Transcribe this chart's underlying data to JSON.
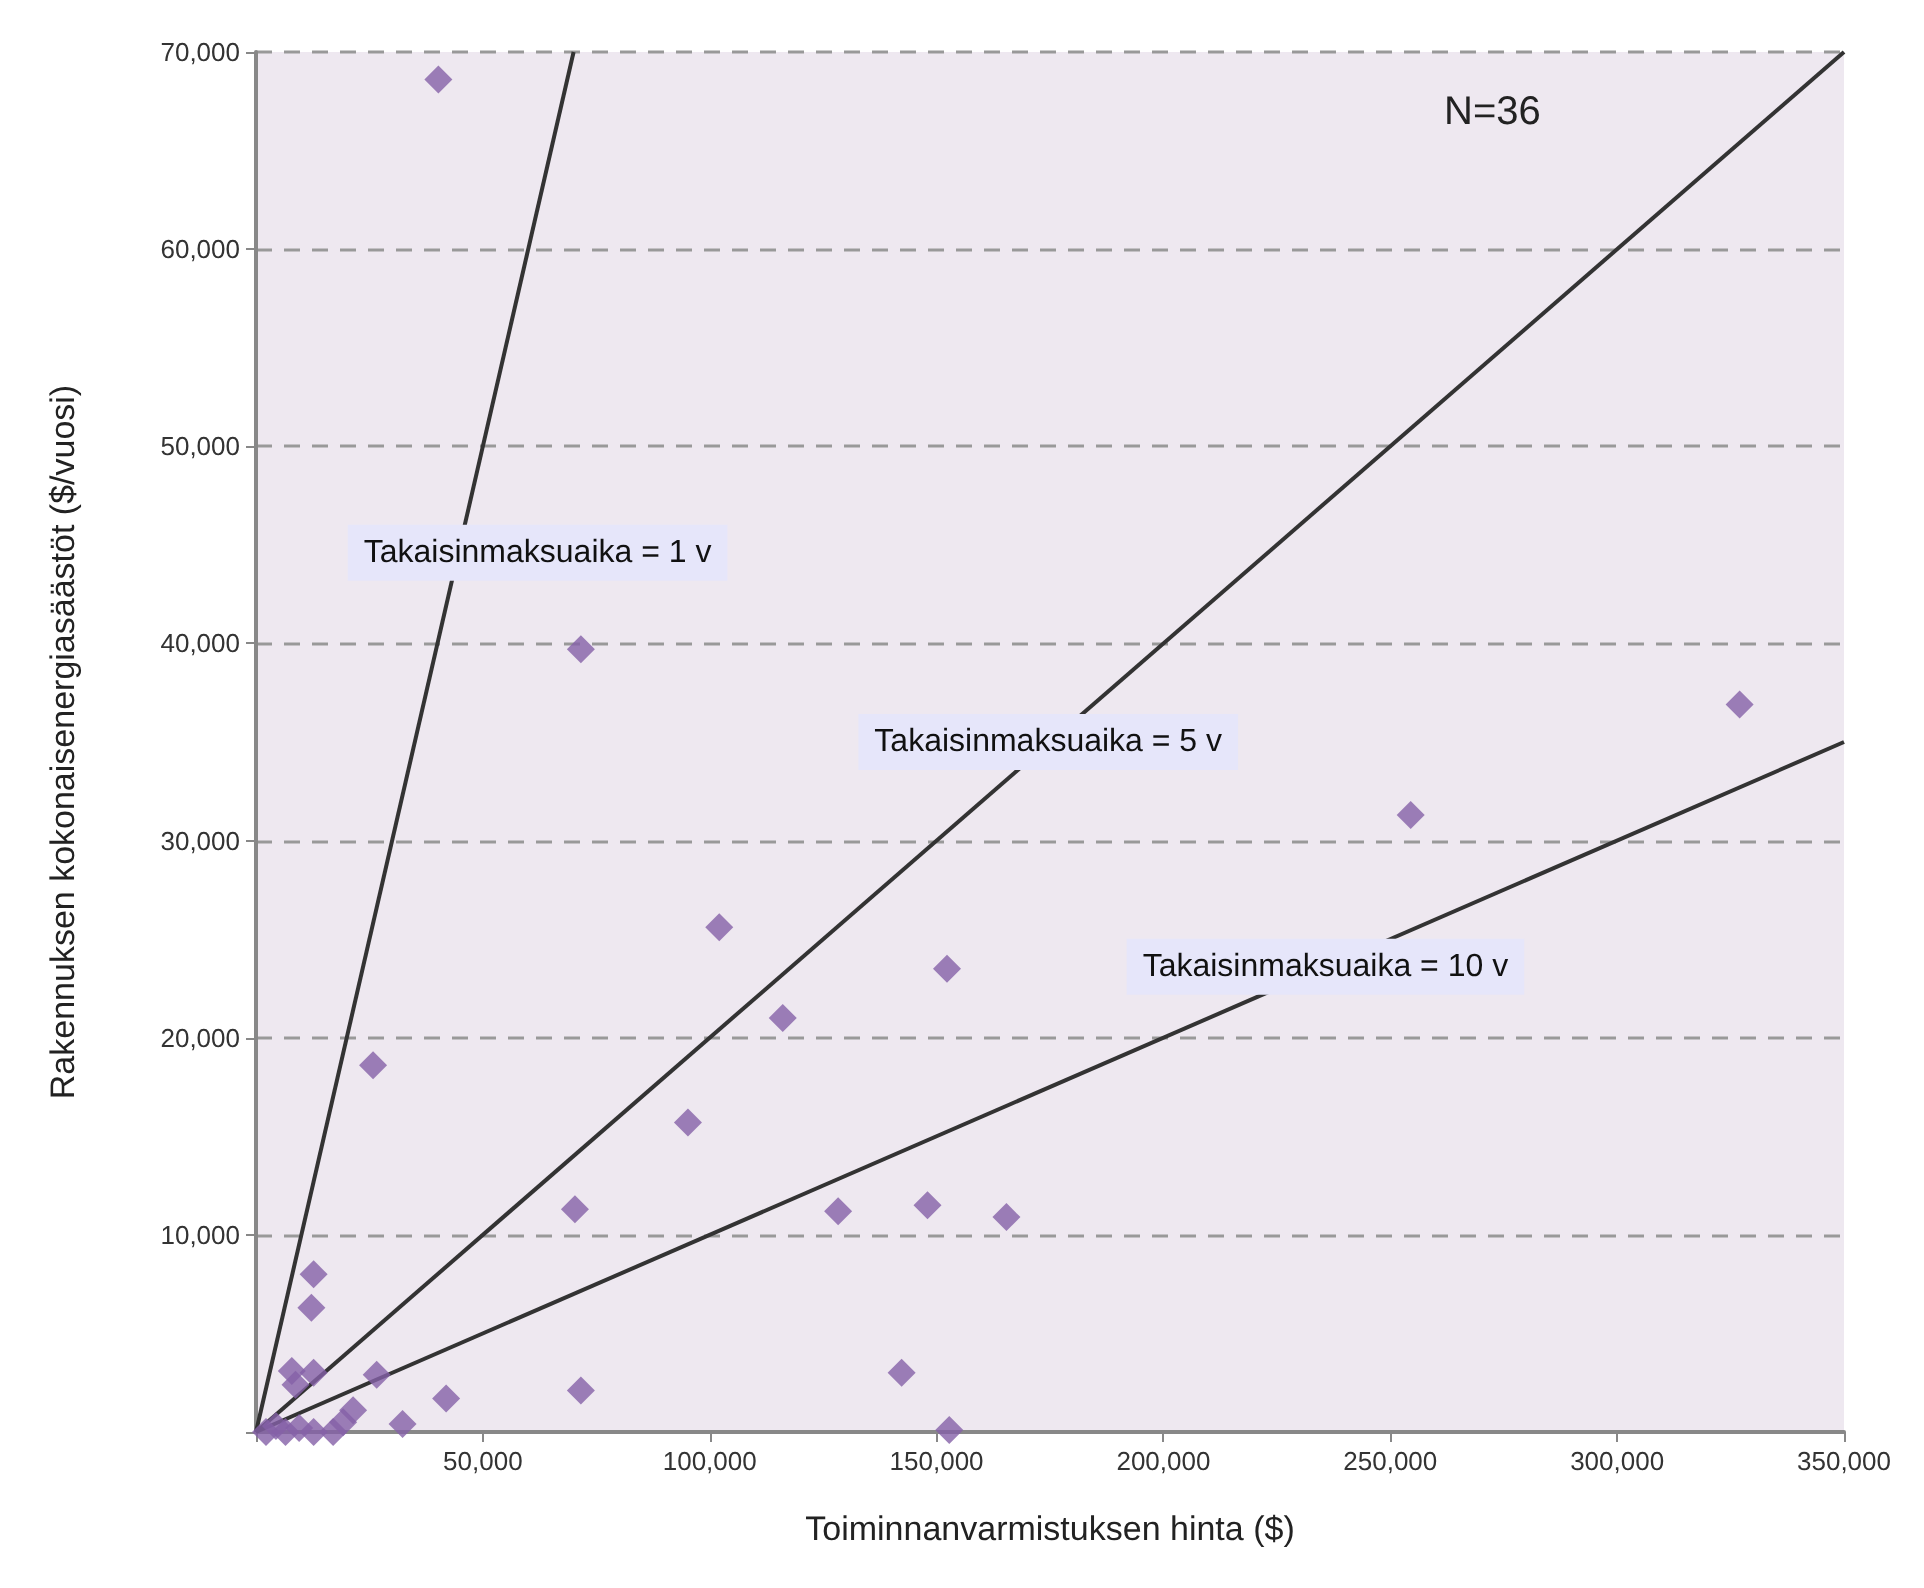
{
  "chart_data": {
    "type": "scatter",
    "xlabel": "Toiminnanvarmistuksen hinta ($)",
    "ylabel": "Rakennuksen kokonaisenergiasäästöt ($/vuosi)",
    "xlim": [
      0,
      350000
    ],
    "xticks": [
      {
        "value": 0,
        "label": null
      },
      {
        "value": 50000,
        "label": "50,000"
      },
      {
        "value": 100000,
        "label": "100,000"
      },
      {
        "value": 150000,
        "label": "150,000"
      },
      {
        "value": 200000,
        "label": "200,000"
      },
      {
        "value": 250000,
        "label": "250,000"
      },
      {
        "value": 300000,
        "label": "300,000"
      },
      {
        "value": 350000,
        "label": "350,000"
      }
    ],
    "ylim": [
      0,
      70000
    ],
    "yticks": [
      {
        "value": 0,
        "label": null
      },
      {
        "value": 10000,
        "label": "10,000"
      },
      {
        "value": 20000,
        "label": "20,000"
      },
      {
        "value": 30000,
        "label": "30,000"
      },
      {
        "value": 40000,
        "label": "40,000"
      },
      {
        "value": 50000,
        "label": "50,000"
      },
      {
        "value": 60000,
        "label": "60,000"
      },
      {
        "value": 70000,
        "label": "70,000"
      }
    ],
    "grid": "y",
    "series": [
      {
        "type": "scatter",
        "marker": "diamond",
        "color": "#8560a8",
        "x": [
          40200,
          71600,
          327000,
          254500,
          102100,
          152300,
          116100,
          95200,
          128300,
          148000,
          165400,
          142300,
          152800,
          25800,
          70300,
          71600,
          41900,
          32300,
          12700,
          12200,
          7900,
          12700,
          8700,
          26600,
          21400,
          19200,
          17000,
          12700,
          6500,
          2200,
          4400,
          9500
        ],
        "values": [
          68600,
          39700,
          36900,
          31300,
          25600,
          23500,
          21000,
          15700,
          11200,
          11500,
          10900,
          3000,
          100,
          18600,
          11300,
          2100,
          1700,
          400,
          8000,
          6300,
          3100,
          3000,
          2400,
          2900,
          1100,
          500,
          0,
          0,
          0,
          0,
          300,
          200
        ]
      },
      {
        "type": "line",
        "marker": "none",
        "line_style": "solid",
        "color": "#333333",
        "x": [
          0,
          70000
        ],
        "values": [
          0,
          70000
        ]
      },
      {
        "type": "line",
        "marker": "none",
        "line_style": "solid",
        "color": "#333333",
        "x": [
          0,
          350000
        ],
        "values": [
          0,
          70000
        ]
      },
      {
        "type": "line",
        "marker": "none",
        "line_style": "solid",
        "color": "#333333",
        "x": [
          0,
          350000
        ],
        "values": [
          0,
          35000
        ]
      }
    ],
    "annotations": [
      {
        "text": "Takaisinmaksuaika = 1 v",
        "x": 44600,
        "y": 44600
      },
      {
        "text": "Takaisinmaksuaika = 5 v",
        "x": 174600,
        "y": 35000
      },
      {
        "text": "Takaisinmaksuaika = 10 v",
        "x": 235700,
        "y": 23600
      },
      "N=36"
    ]
  }
}
